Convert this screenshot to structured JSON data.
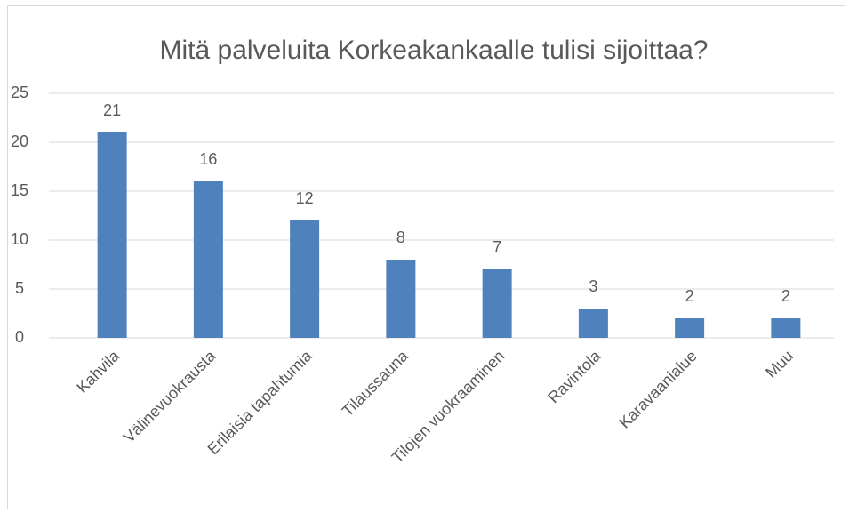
{
  "chart_data": {
    "type": "bar",
    "title": "Mitä palveluita Korkeakankaalle tulisi sijoittaa?",
    "categories": [
      "Kahvila",
      "Välinevuokrausta",
      "Erilaisia tapahtumia",
      "Tilaussauna",
      "Tilojen vuokraaminen",
      "Ravintola",
      "Karavaanialue",
      "Muu"
    ],
    "values": [
      21,
      16,
      12,
      8,
      7,
      3,
      2,
      2
    ],
    "color": "#4f81bd",
    "ylim": [
      0,
      25
    ],
    "yticks": [
      0,
      5,
      10,
      15,
      20,
      25
    ],
    "grid": true
  }
}
